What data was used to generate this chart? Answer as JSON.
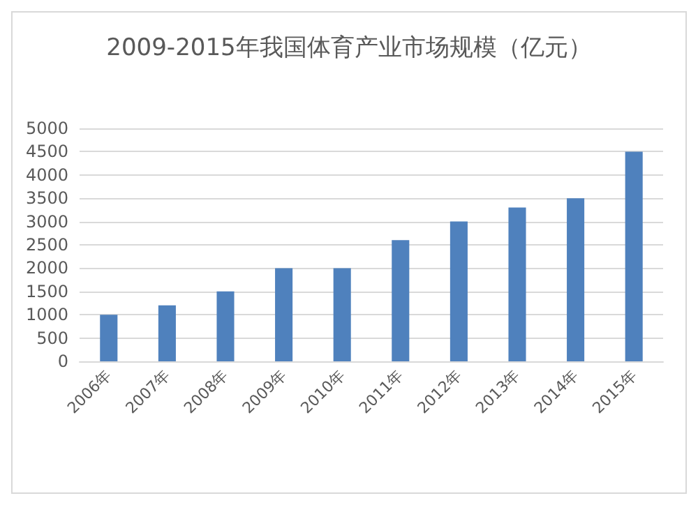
{
  "chart_data": {
    "type": "bar",
    "title": "2009-2015年我国体育产业市场规模（亿元）",
    "categories": [
      "2006年",
      "2007年",
      "2008年",
      "2009年",
      "2010年",
      "2011年",
      "2012年",
      "2013年",
      "2014年",
      "2015年"
    ],
    "values": [
      1000,
      1200,
      1500,
      2000,
      2000,
      2600,
      3000,
      3300,
      3500,
      4500
    ],
    "color": "#4f81bd",
    "ylim": [
      0,
      5000
    ],
    "yticks": [
      0,
      500,
      1000,
      1500,
      2000,
      2500,
      3000,
      3500,
      4000,
      4500,
      5000
    ],
    "grid": true
  }
}
